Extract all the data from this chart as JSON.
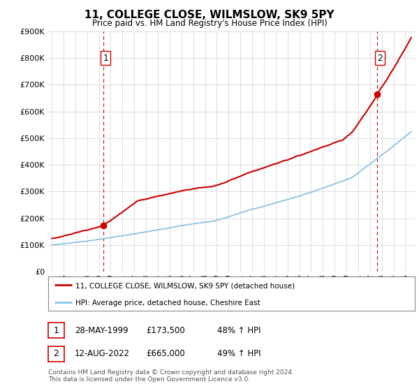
{
  "title": "11, COLLEGE CLOSE, WILMSLOW, SK9 5PY",
  "subtitle": "Price paid vs. HM Land Registry's House Price Index (HPI)",
  "ylabel_ticks": [
    "£0",
    "£100K",
    "£200K",
    "£300K",
    "£400K",
    "£500K",
    "£600K",
    "£700K",
    "£800K",
    "£900K"
  ],
  "ytick_vals": [
    0,
    100000,
    200000,
    300000,
    400000,
    500000,
    600000,
    700000,
    800000,
    900000
  ],
  "ylim": [
    0,
    900000
  ],
  "xlim_start": 1994.7,
  "xlim_end": 2025.8,
  "purchase1_year": 1999.38,
  "purchase1_price": 173500,
  "purchase2_year": 2022.62,
  "purchase2_price": 665000,
  "hpi_color": "#89c4e1",
  "price_color": "#cc0000",
  "vline_color": "#cc0000",
  "legend_label_red": "11, COLLEGE CLOSE, WILMSLOW, SK9 5PY (detached house)",
  "legend_label_blue": "HPI: Average price, detached house, Cheshire East",
  "table_rows": [
    {
      "num": "1",
      "date": "28-MAY-1999",
      "price": "£173,500",
      "change": "48% ↑ HPI"
    },
    {
      "num": "2",
      "date": "12-AUG-2022",
      "price": "£665,000",
      "change": "49% ↑ HPI"
    }
  ],
  "footnote1": "Contains HM Land Registry data © Crown copyright and database right 2024.",
  "footnote2": "This data is licensed under the Open Government Licence v3.0.",
  "background_color": "#ffffff",
  "grid_color": "#d0d0d0"
}
